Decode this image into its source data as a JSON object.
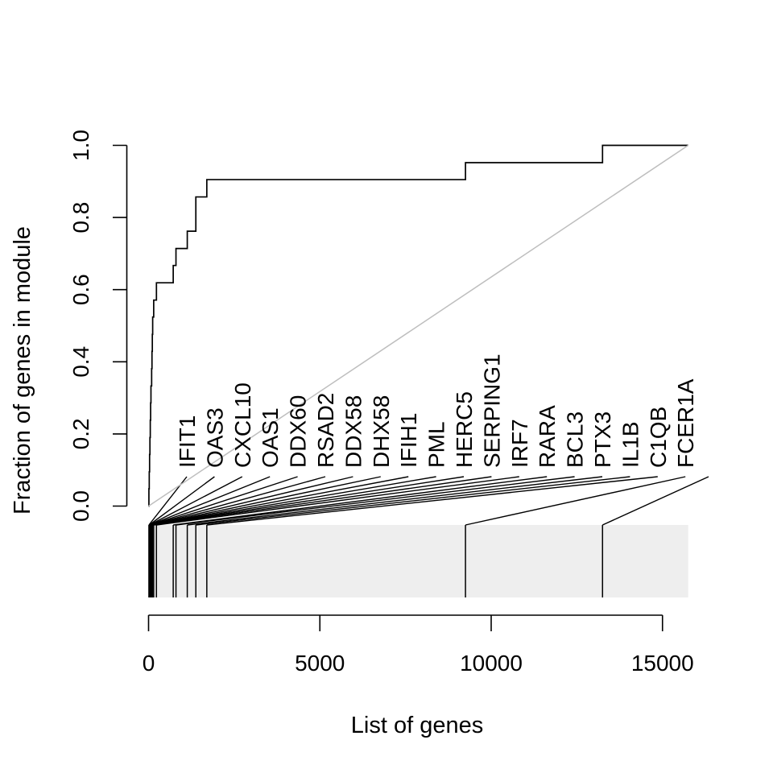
{
  "chart_data": {
    "type": "line",
    "title": "",
    "xlabel": "List of genes",
    "ylabel": "Fraction of genes in module",
    "xlim": [
      0,
      15750
    ],
    "ylim": [
      0,
      1
    ],
    "x_ticks": [
      0,
      5000,
      10000,
      15000
    ],
    "x_tick_labels": [
      "0",
      "5000",
      "10000",
      "15000"
    ],
    "y_ticks": [
      0,
      0.2,
      0.4,
      0.6,
      0.8,
      1
    ],
    "y_tick_labels": [
      "0.0",
      "0.2",
      "0.4",
      "0.6",
      "0.8",
      "1.0"
    ],
    "grid": false,
    "series": [
      {
        "style": "step",
        "color": "#000000",
        "points": [
          [
            0,
            0
          ],
          [
            10,
            0.048
          ],
          [
            20,
            0.095
          ],
          [
            30,
            0.143
          ],
          [
            40,
            0.19
          ],
          [
            50,
            0.238
          ],
          [
            60,
            0.286
          ],
          [
            70,
            0.333
          ],
          [
            90,
            0.381
          ],
          [
            100,
            0.429
          ],
          [
            110,
            0.476
          ],
          [
            120,
            0.524
          ],
          [
            150,
            0.571
          ],
          [
            230,
            0.619
          ],
          [
            720,
            0.667
          ],
          [
            800,
            0.714
          ],
          [
            1130,
            0.762
          ],
          [
            1380,
            0.857
          ],
          [
            1700,
            0.905
          ],
          [
            9250,
            0.952
          ],
          [
            13250,
            1.0
          ],
          [
            15750,
            1.0
          ]
        ]
      },
      {
        "style": "diagonal",
        "color": "#bebebe",
        "points": [
          [
            0,
            0
          ],
          [
            15750,
            1
          ]
        ]
      }
    ],
    "rug": {
      "fill_color": "#eeeeee",
      "positions": [
        10,
        20,
        30,
        40,
        50,
        60,
        70,
        90,
        100,
        110,
        120,
        150,
        230,
        720,
        800,
        1130,
        1380,
        1700,
        9250,
        13250
      ]
    },
    "gene_labels": [
      "IFIT1",
      "OAS3",
      "CXCL10",
      "OAS1",
      "DDX60",
      "RSAD2",
      "DDX58",
      "DHX58",
      "IFIH1",
      "PML",
      "HERC5",
      "SERPING1",
      "IRF7",
      "RARA",
      "BCL3",
      "PTX3",
      "IL1B",
      "C1QB",
      "FCER1A"
    ]
  }
}
